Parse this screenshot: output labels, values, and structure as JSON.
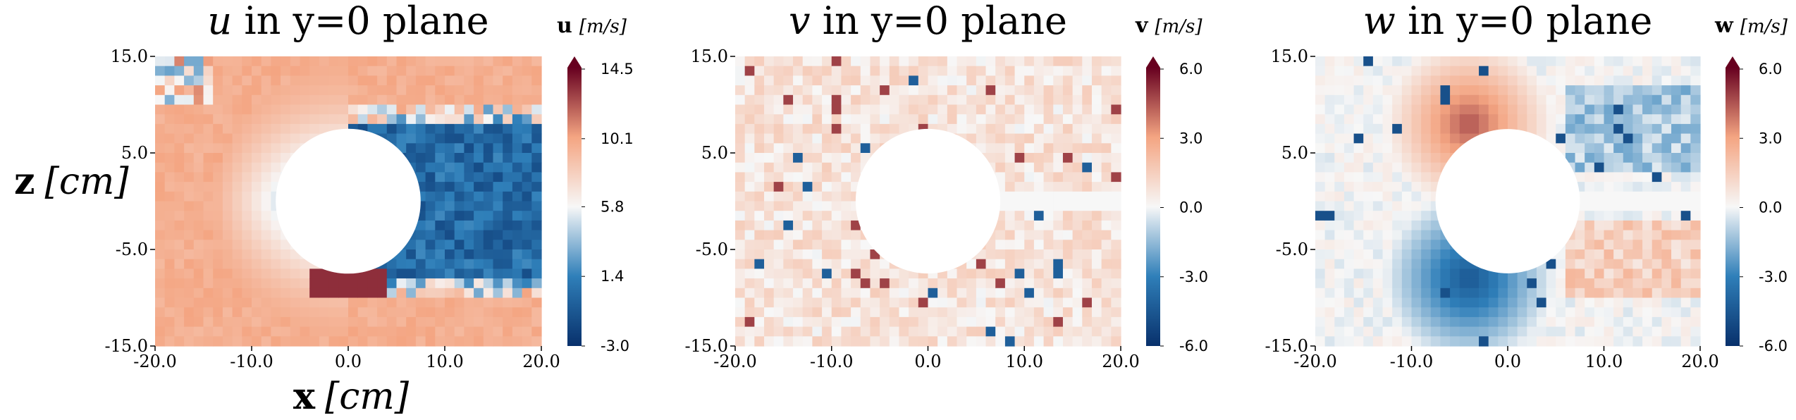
{
  "figure": {
    "xlabel_bold": "x",
    "xlabel_unit": "[cm]",
    "zlabel_bold": "z",
    "zlabel_unit": "[cm]"
  },
  "colors": {
    "min": "#08306b",
    "low": "#2f7fb9",
    "mid": "#f7f7f7",
    "high": "#f4a582",
    "max": "#67001f"
  },
  "chart_data": [
    {
      "type": "heatmap",
      "title_var": "u",
      "title_rest": " in y=0 plane",
      "colorbar_var": "u",
      "colorbar_unit": "[m/s]",
      "xticks": [
        "-20.0",
        "-10.0",
        "0.0",
        "10.0",
        "20.0"
      ],
      "yticks": [
        "15.0",
        "5.0",
        "-5.0",
        "-15.0"
      ],
      "colorbar_ticks": [
        "14.5",
        "10.1",
        "5.8",
        "1.4",
        "-3.0"
      ],
      "xlim": [
        -20,
        20
      ],
      "ylim": [
        -15,
        15
      ],
      "clim": [
        -3.0,
        14.5
      ],
      "obstacle": {
        "shape": "circle",
        "center": [
          0,
          0
        ],
        "radius": 7.5
      },
      "cell_size_cm": 1
    },
    {
      "type": "heatmap",
      "title_var": "v",
      "title_rest": " in y=0 plane",
      "colorbar_var": "v",
      "colorbar_unit": "[m/s]",
      "xticks": [
        "-20.0",
        "-10.0",
        "0.0",
        "10.0",
        "20.0"
      ],
      "yticks": [
        "15.0",
        "5.0",
        "-5.0",
        "-15.0"
      ],
      "colorbar_ticks": [
        "6.0",
        "3.0",
        "0.0",
        "-3.0",
        "-6.0"
      ],
      "xlim": [
        -20,
        20
      ],
      "ylim": [
        -15,
        15
      ],
      "clim": [
        -6.0,
        6.0
      ],
      "obstacle": {
        "shape": "circle",
        "center": [
          0,
          0
        ],
        "radius": 7.5
      },
      "cell_size_cm": 1
    },
    {
      "type": "heatmap",
      "title_var": "w",
      "title_rest": " in y=0 plane",
      "colorbar_var": "w",
      "colorbar_unit": "[m/s]",
      "xticks": [
        "-20.0",
        "-10.0",
        "0.0",
        "10.0",
        "20.0"
      ],
      "yticks": [
        "15.0",
        "5.0",
        "-5.0",
        "-15.0"
      ],
      "colorbar_ticks": [
        "6.0",
        "3.0",
        "0.0",
        "-3.0",
        "-6.0"
      ],
      "xlim": [
        -20,
        20
      ],
      "ylim": [
        -15,
        15
      ],
      "clim": [
        -6.0,
        6.0
      ],
      "obstacle": {
        "shape": "circle",
        "center": [
          0,
          0
        ],
        "radius": 7.5
      },
      "cell_size_cm": 1
    }
  ]
}
